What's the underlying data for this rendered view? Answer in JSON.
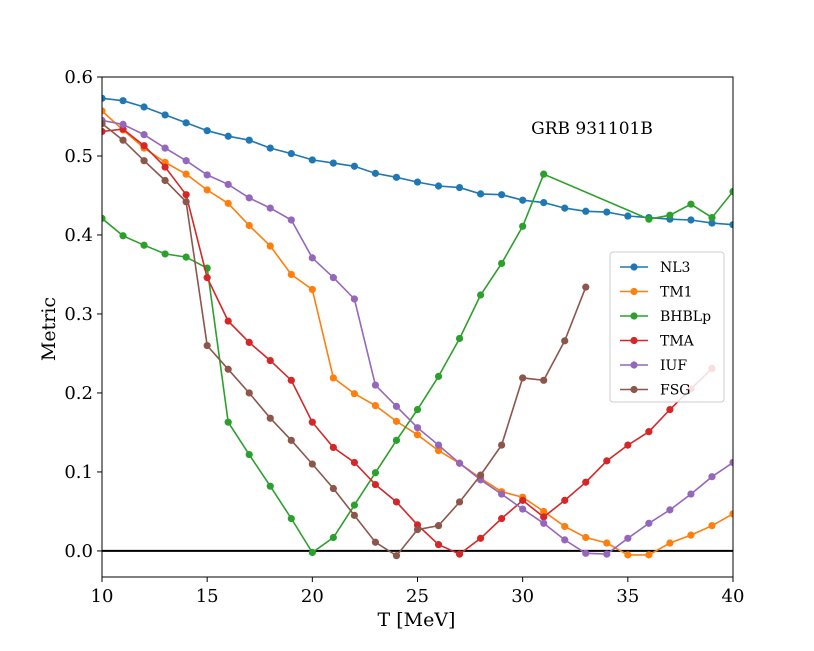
{
  "chart_data": {
    "type": "line",
    "xlabel": "T [MeV]",
    "ylabel": "Metric",
    "xlim": [
      10,
      40
    ],
    "ylim": [
      -0.033,
      0.6
    ],
    "xticks": [
      10,
      15,
      20,
      25,
      30,
      35,
      40
    ],
    "yticks": [
      0.0,
      0.1,
      0.2,
      0.3,
      0.4,
      0.5,
      0.6
    ],
    "xtick_labels": [
      "10",
      "15",
      "20",
      "25",
      "30",
      "35",
      "40"
    ],
    "ytick_labels": [
      "0.0",
      "0.1",
      "0.2",
      "0.3",
      "0.4",
      "0.5",
      "0.6"
    ],
    "annotation": "GRB 931101B",
    "hline": 0.0,
    "grid": false,
    "legend_position": "right",
    "series": [
      {
        "name": "NL3",
        "color": "#1f77b4",
        "x": [
          10,
          11,
          12,
          13,
          14,
          15,
          16,
          17,
          18,
          19,
          20,
          21,
          22,
          23,
          24,
          25,
          26,
          27,
          28,
          29,
          30,
          31,
          32,
          33,
          34,
          35,
          36,
          37,
          38,
          39,
          40
        ],
        "y": [
          0.573,
          0.57,
          0.562,
          0.552,
          0.542,
          0.532,
          0.525,
          0.52,
          0.51,
          0.503,
          0.495,
          0.491,
          0.487,
          0.478,
          0.473,
          0.467,
          0.462,
          0.46,
          0.452,
          0.451,
          0.444,
          0.441,
          0.434,
          0.43,
          0.429,
          0.424,
          0.422,
          0.42,
          0.419,
          0.415,
          0.413
        ]
      },
      {
        "name": "TM1",
        "color": "#ff7f0e",
        "x": [
          10,
          11,
          12,
          13,
          14,
          15,
          16,
          17,
          18,
          19,
          20,
          21,
          22,
          23,
          24,
          25,
          26,
          27,
          28,
          29,
          30,
          31,
          32,
          33,
          34,
          35,
          36,
          37,
          38,
          39,
          40
        ],
        "y": [
          0.557,
          0.533,
          0.51,
          0.492,
          0.477,
          0.457,
          0.44,
          0.412,
          0.386,
          0.35,
          0.331,
          0.219,
          0.199,
          0.184,
          0.164,
          0.147,
          0.127,
          0.111,
          0.092,
          0.075,
          0.068,
          0.05,
          0.031,
          0.017,
          0.01,
          -0.005,
          -0.005,
          0.01,
          0.02,
          0.032,
          0.047
        ]
      },
      {
        "name": "BHBLp",
        "color": "#2ca02c",
        "x": [
          10,
          11,
          12,
          13,
          14,
          15,
          16,
          17,
          18,
          19,
          20,
          21,
          22,
          23,
          24,
          25,
          26,
          27,
          28,
          29,
          30,
          31,
          36,
          37,
          38,
          39,
          40
        ],
        "y": [
          0.421,
          0.399,
          0.387,
          0.376,
          0.372,
          0.358,
          0.163,
          0.122,
          0.082,
          0.041,
          -0.002,
          0.017,
          0.058,
          0.099,
          0.14,
          0.179,
          0.221,
          0.269,
          0.324,
          0.364,
          0.411,
          0.477,
          0.42,
          0.425,
          0.439,
          0.422,
          0.455
        ]
      },
      {
        "name": "TMA",
        "color": "#d62728",
        "x": [
          10,
          11,
          12,
          13,
          14,
          15,
          16,
          17,
          18,
          19,
          20,
          21,
          22,
          23,
          24,
          25,
          26,
          27,
          28,
          29,
          30,
          31,
          32,
          33,
          34,
          35,
          36,
          37,
          38,
          39
        ],
        "y": [
          0.531,
          0.534,
          0.513,
          0.486,
          0.451,
          0.346,
          0.291,
          0.264,
          0.241,
          0.216,
          0.163,
          0.131,
          0.112,
          0.084,
          0.062,
          0.033,
          0.008,
          -0.004,
          0.016,
          0.041,
          0.064,
          0.043,
          0.064,
          0.087,
          0.114,
          0.134,
          0.151,
          0.179,
          0.205,
          0.231
        ]
      },
      {
        "name": "IUF",
        "color": "#9467bd",
        "x": [
          10,
          11,
          12,
          13,
          14,
          15,
          16,
          17,
          18,
          19,
          20,
          21,
          22,
          23,
          24,
          25,
          26,
          27,
          28,
          29,
          30,
          31,
          32,
          33,
          34,
          35,
          36,
          37,
          38,
          39,
          40
        ],
        "y": [
          0.545,
          0.54,
          0.527,
          0.51,
          0.494,
          0.476,
          0.464,
          0.447,
          0.434,
          0.419,
          0.371,
          0.346,
          0.319,
          0.21,
          0.183,
          0.156,
          0.134,
          0.111,
          0.09,
          0.072,
          0.053,
          0.035,
          0.014,
          -0.003,
          -0.004,
          0.016,
          0.035,
          0.052,
          0.072,
          0.094,
          0.112
        ]
      },
      {
        "name": "FSG",
        "color": "#8c564b",
        "x": [
          10,
          11,
          12,
          13,
          14,
          15,
          16,
          17,
          18,
          19,
          20,
          21,
          22,
          23,
          24,
          25,
          26,
          27,
          28,
          29,
          30,
          31,
          32,
          33
        ],
        "y": [
          0.541,
          0.52,
          0.494,
          0.469,
          0.442,
          0.26,
          0.23,
          0.2,
          0.168,
          0.14,
          0.11,
          0.079,
          0.045,
          0.011,
          -0.006,
          0.027,
          0.032,
          0.062,
          0.096,
          0.134,
          0.219,
          0.216,
          0.266,
          0.334
        ]
      }
    ]
  }
}
